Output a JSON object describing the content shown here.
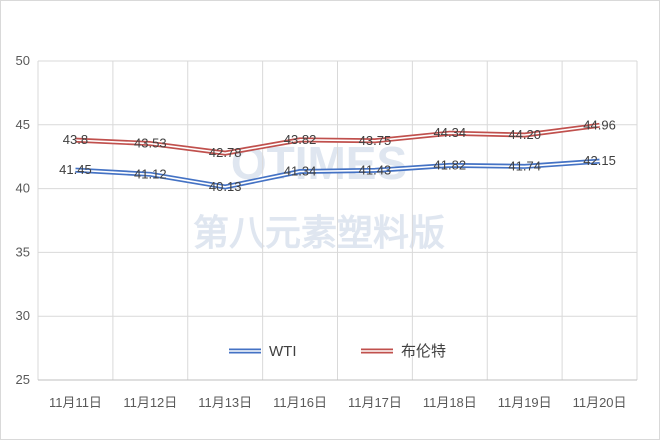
{
  "watermark": {
    "logo_text": "OTIMES",
    "subtitle": "第八元素塑料版"
  },
  "colors": {
    "wti": "#4472c4",
    "brent": "#c0504d",
    "grid": "#d9d9d9",
    "axis": "#bfbfbf",
    "watermark": "#dfe6f0"
  },
  "chart_data": {
    "type": "line",
    "title": "",
    "xlabel": "",
    "ylabel": "",
    "categories": [
      "11月11日",
      "11月12日",
      "11月13日",
      "11月16日",
      "11月17日",
      "11月18日",
      "11月19日",
      "11月20日"
    ],
    "ylim": [
      25,
      50
    ],
    "yticks": [
      25,
      30,
      35,
      40,
      45,
      50
    ],
    "grid": true,
    "legend_position": "bottom-center",
    "series": [
      {
        "name": "WTI",
        "color": "#4472c4",
        "values": [
          41.45,
          41.12,
          40.13,
          41.34,
          41.43,
          41.82,
          41.74,
          42.15
        ],
        "labels": [
          "41.45",
          "41.12",
          "40.13",
          "41.34",
          "41.43",
          "41.82",
          "41.74",
          "42.15"
        ]
      },
      {
        "name": "布伦特",
        "color": "#c0504d",
        "values": [
          43.8,
          43.53,
          42.78,
          43.82,
          43.75,
          44.34,
          44.2,
          44.96
        ],
        "labels": [
          "43.8",
          "43.53",
          "42.78",
          "43.82",
          "43.75",
          "44.34",
          "44.20",
          "44.96"
        ]
      }
    ]
  }
}
